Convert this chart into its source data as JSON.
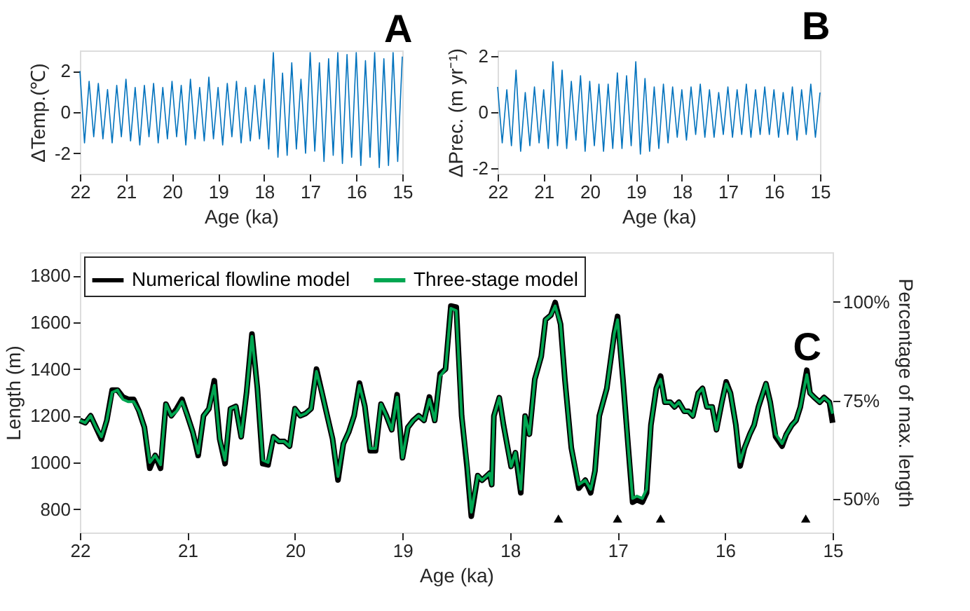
{
  "chart_data": [
    {
      "type": "line",
      "title": "A",
      "xlabel": "Age (ka)",
      "ylabel": "ΔTemp.(℃)",
      "xlim": [
        22,
        15
      ],
      "xticks": [
        22,
        21,
        20,
        19,
        18,
        17,
        16,
        15
      ],
      "ylim": [
        -3,
        3
      ],
      "yticks": [
        -2,
        0,
        2
      ],
      "grid": false,
      "legend": false,
      "x": [
        22,
        21.9,
        21.8,
        21.7,
        21.6,
        21.5,
        21.4,
        21.3,
        21.2,
        21.1,
        21,
        20.9,
        20.8,
        20.7,
        20.6,
        20.5,
        20.4,
        20.3,
        20.2,
        20.1,
        20,
        19.9,
        19.8,
        19.7,
        19.6,
        19.5,
        19.4,
        19.3,
        19.2,
        19.1,
        19,
        18.9,
        18.8,
        18.7,
        18.6,
        18.5,
        18.4,
        18.3,
        18.2,
        18.1,
        18,
        17.9,
        17.8,
        17.7,
        17.6,
        17.5,
        17.4,
        17.3,
        17.2,
        17.1,
        17,
        16.9,
        16.8,
        16.7,
        16.6,
        16.5,
        16.4,
        16.3,
        16.2,
        16.1,
        16,
        15.9,
        15.8,
        15.7,
        15.6,
        15.5,
        15.4,
        15.3,
        15.2,
        15.1,
        15
      ],
      "series": [
        {
          "color": "#0072bd",
          "values": [
            2.0,
            -1.5,
            1.5,
            -1.2,
            1.4,
            -1.3,
            1.1,
            -1.5,
            1.3,
            -1.2,
            1.6,
            -1.4,
            1.2,
            -1.6,
            1.3,
            -1.2,
            1.4,
            -1.5,
            1.2,
            -1.3,
            1.5,
            -1.2,
            1.3,
            -1.6,
            1.6,
            -1.3,
            1.2,
            -1.4,
            1.7,
            -1.3,
            1.2,
            -1.6,
            1.4,
            -1.2,
            1.5,
            -1.5,
            1.2,
            -1.4,
            1.3,
            -1.3,
            1.6,
            -1.8,
            2.9,
            -2.2,
            1.9,
            -2.1,
            2.4,
            -1.8,
            1.6,
            -2.0,
            2.9,
            -1.9,
            2.4,
            -2.4,
            2.6,
            -2.1,
            2.9,
            -2.5,
            2.8,
            -2.2,
            2.9,
            -2.6,
            2.5,
            -2.2,
            2.9,
            -2.7,
            2.6,
            -2.6,
            2.9,
            -2.4,
            2.7
          ]
        }
      ]
    },
    {
      "type": "line",
      "title": "B",
      "xlabel": "Age (ka)",
      "ylabel": "ΔPrec. (m yr⁻¹)",
      "xlim": [
        22,
        15
      ],
      "xticks": [
        22,
        21,
        20,
        19,
        18,
        17,
        16,
        15
      ],
      "ylim": [
        -2.2,
        2.2
      ],
      "yticks": [
        -2,
        0,
        2
      ],
      "grid": false,
      "legend": false,
      "x": [
        22,
        21.9,
        21.8,
        21.7,
        21.6,
        21.5,
        21.4,
        21.3,
        21.2,
        21.1,
        21,
        20.9,
        20.8,
        20.7,
        20.6,
        20.5,
        20.4,
        20.3,
        20.2,
        20.1,
        20,
        19.9,
        19.8,
        19.7,
        19.6,
        19.5,
        19.4,
        19.3,
        19.2,
        19.1,
        19,
        18.9,
        18.8,
        18.7,
        18.6,
        18.5,
        18.4,
        18.3,
        18.2,
        18.1,
        18,
        17.9,
        17.8,
        17.7,
        17.6,
        17.5,
        17.4,
        17.3,
        17.2,
        17.1,
        17,
        16.9,
        16.8,
        16.7,
        16.6,
        16.5,
        16.4,
        16.3,
        16.2,
        16.1,
        16,
        15.9,
        15.8,
        15.7,
        15.6,
        15.5,
        15.4,
        15.3,
        15.2,
        15.1,
        15
      ],
      "series": [
        {
          "color": "#0072bd",
          "values": [
            0.9,
            -1.1,
            0.8,
            -1.2,
            1.5,
            -1.4,
            0.7,
            -1.2,
            0.9,
            -1.1,
            0.8,
            -1.3,
            1.8,
            -1.2,
            1.5,
            -1.3,
            1.1,
            -1.0,
            1.3,
            -1.4,
            1.1,
            -1.2,
            1.0,
            -1.4,
            1.0,
            -1.3,
            1.4,
            -1.3,
            1.3,
            -1.2,
            1.8,
            -1.5,
            1.2,
            -1.4,
            0.9,
            -1.3,
            1.0,
            -1.1,
            0.9,
            -0.9,
            0.8,
            -1.0,
            0.9,
            -0.8,
            1.0,
            -0.9,
            0.8,
            -0.9,
            0.7,
            -0.8,
            0.9,
            -0.9,
            0.8,
            -0.8,
            1.0,
            -0.9,
            0.8,
            -0.8,
            0.9,
            -0.8,
            0.8,
            -0.9,
            0.7,
            -0.8,
            0.9,
            -1.0,
            0.8,
            -0.8,
            1.0,
            -0.9,
            0.7
          ]
        }
      ]
    },
    {
      "type": "line",
      "xlabel": "Age (ka)",
      "ylabel": "Length (m)",
      "y2label": "Percentage of max. length",
      "xlim": [
        22,
        15
      ],
      "xticks": [
        22,
        21,
        20,
        19,
        18,
        17,
        16,
        15
      ],
      "ylim": [
        700,
        1900
      ],
      "yticks": [
        800,
        1000,
        1200,
        1400,
        1600,
        1800
      ],
      "y2lim": [
        41.5,
        112.6
      ],
      "y2ticks": [
        {
          "value": 50,
          "label": "50%"
        },
        {
          "value": 75,
          "label": "75%"
        },
        {
          "value": 100,
          "label": "100%"
        }
      ],
      "grid": false,
      "legend": "top left",
      "annotations": [
        "C"
      ],
      "x": [
        22,
        21.95,
        21.9,
        21.85,
        21.8,
        21.75,
        21.7,
        21.65,
        21.6,
        21.55,
        21.5,
        21.45,
        21.4,
        21.35,
        21.3,
        21.25,
        21.2,
        21.15,
        21.1,
        21.05,
        21,
        20.95,
        20.9,
        20.85,
        20.8,
        20.75,
        20.7,
        20.65,
        20.6,
        20.55,
        20.5,
        20.45,
        20.4,
        20.35,
        20.3,
        20.25,
        20.2,
        20.15,
        20.1,
        20.05,
        20,
        19.95,
        19.9,
        19.85,
        19.8,
        19.75,
        19.7,
        19.65,
        19.6,
        19.55,
        19.5,
        19.45,
        19.4,
        19.35,
        19.3,
        19.25,
        19.2,
        19.15,
        19.1,
        19.05,
        19,
        18.95,
        18.9,
        18.85,
        18.8,
        18.75,
        18.7,
        18.65,
        18.6,
        18.55,
        18.5,
        18.45,
        18.4,
        18.36,
        18.3,
        18.26,
        18.19,
        18.17,
        18.15,
        18.1,
        18.06,
        17.99,
        17.95,
        17.9,
        17.86,
        17.82,
        17.77,
        17.71,
        17.67,
        17.62,
        17.58,
        17.53,
        17.49,
        17.43,
        17.36,
        17.3,
        17.25,
        17.21,
        17.17,
        17.1,
        17.03,
        17.0,
        16.95,
        16.9,
        16.86,
        16.82,
        16.77,
        16.73,
        16.69,
        16.64,
        16.6,
        16.56,
        16.51,
        16.47,
        16.43,
        16.38,
        16.34,
        16.3,
        16.25,
        16.21,
        16.17,
        16.12,
        16.08,
        16.03,
        15.99,
        15.95,
        15.9,
        15.86,
        15.82,
        15.77,
        15.73,
        15.69,
        15.62,
        15.58,
        15.53,
        15.47,
        15.43,
        15.38,
        15.34,
        15.3,
        15.24,
        15.21,
        15.17,
        15.12,
        15.08,
        15.03,
        15.0
      ],
      "series": [
        {
          "name": "Numerical flowline model",
          "color": "#000000",
          "values": [
            1180,
            1170,
            1200,
            1150,
            1100,
            1180,
            1310,
            1310,
            1280,
            1270,
            1270,
            1220,
            1150,
            975,
            1030,
            975,
            1250,
            1200,
            1230,
            1270,
            1200,
            1130,
            1030,
            1200,
            1230,
            1350,
            1100,
            995,
            1230,
            1240,
            1110,
            1300,
            1550,
            1320,
            995,
            990,
            1110,
            1090,
            1090,
            1070,
            1230,
            1200,
            1210,
            1230,
            1400,
            1300,
            1200,
            1100,
            925,
            1080,
            1130,
            1200,
            1340,
            1240,
            1050,
            1050,
            1250,
            1200,
            1140,
            1290,
            1020,
            1150,
            1180,
            1200,
            1180,
            1280,
            1180,
            1380,
            1400,
            1670,
            1665,
            1200,
            980,
            770,
            944,
            924,
            954,
            905,
            1199,
            1277,
            1159,
            983,
            1042,
            870,
            1199,
            1121,
            1356,
            1454,
            1611,
            1631,
            1685,
            1592,
            1356,
            1062,
            890,
            924,
            870,
            964,
            1199,
            1317,
            1553,
            1625,
            1356,
            1062,
            830,
            840,
            830,
            870,
            1160,
            1317,
            1370,
            1258,
            1258,
            1238,
            1258,
            1219,
            1219,
            1199,
            1297,
            1317,
            1238,
            1238,
            1140,
            1258,
            1345,
            1297,
            1160,
            985,
            1062,
            1121,
            1160,
            1238,
            1337,
            1258,
            1110,
            1070,
            1121,
            1160,
            1180,
            1238,
            1395,
            1297,
            1278,
            1258,
            1278,
            1258,
            1170
          ]
        },
        {
          "name": "Three-stage model",
          "color": "#00a651",
          "values": [
            1180,
            1170,
            1200,
            1150,
            1110,
            1180,
            1300,
            1310,
            1270,
            1260,
            1260,
            1220,
            1150,
            1000,
            1030,
            990,
            1250,
            1200,
            1220,
            1260,
            1200,
            1130,
            1040,
            1200,
            1230,
            1330,
            1100,
            1010,
            1230,
            1240,
            1110,
            1300,
            1540,
            1320,
            1010,
            1000,
            1110,
            1090,
            1090,
            1070,
            1230,
            1200,
            1210,
            1230,
            1390,
            1300,
            1200,
            1100,
            940,
            1080,
            1130,
            1200,
            1330,
            1240,
            1060,
            1060,
            1250,
            1200,
            1140,
            1280,
            1020,
            1150,
            1180,
            1200,
            1180,
            1270,
            1180,
            1370,
            1400,
            1660,
            1650,
            1200,
            1000,
            787,
            944,
            924,
            954,
            905,
            1199,
            1277,
            1159,
            983,
            1042,
            885,
            1199,
            1121,
            1356,
            1454,
            1611,
            1631,
            1670,
            1592,
            1356,
            1062,
            905,
            924,
            885,
            964,
            1199,
            1317,
            1553,
            1611,
            1356,
            1062,
            846,
            856,
            846,
            885,
            1160,
            1317,
            1356,
            1258,
            1258,
            1238,
            1258,
            1219,
            1219,
            1199,
            1297,
            1317,
            1238,
            1238,
            1140,
            1258,
            1337,
            1297,
            1160,
            1003,
            1062,
            1121,
            1160,
            1238,
            1337,
            1258,
            1121,
            1081,
            1121,
            1160,
            1180,
            1238,
            1376,
            1297,
            1278,
            1258,
            1278,
            1258,
            1209
          ]
        },
        {
          "type": "scatter",
          "marker": "triangle",
          "color": "#000000",
          "x": [
            17.55,
            17.0,
            16.6,
            15.25
          ],
          "values": [
            760,
            760,
            760,
            760
          ]
        }
      ]
    }
  ]
}
